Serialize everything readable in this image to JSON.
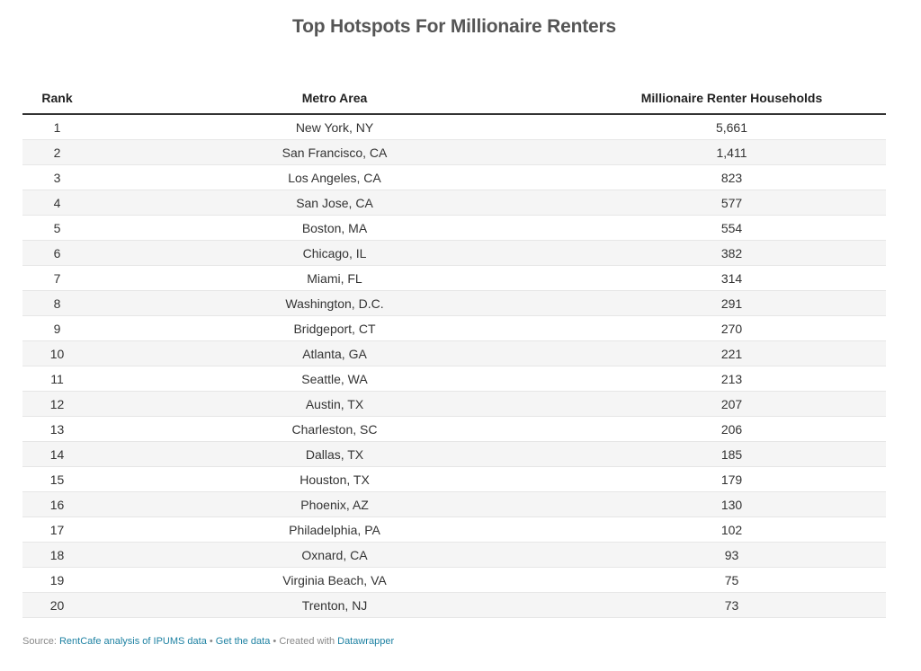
{
  "title": "Top Hotspots For Millionaire Renters",
  "chart_data": {
    "type": "table",
    "title": "Top Hotspots For Millionaire Renters",
    "columns": [
      "Rank",
      "Metro Area",
      "Millionaire Renter Households"
    ],
    "rows": [
      [
        "1",
        "New York, NY",
        "5,661"
      ],
      [
        "2",
        "San Francisco, CA",
        "1,411"
      ],
      [
        "3",
        "Los Angeles, CA",
        "823"
      ],
      [
        "4",
        "San Jose, CA",
        "577"
      ],
      [
        "5",
        "Boston, MA",
        "554"
      ],
      [
        "6",
        "Chicago, IL",
        "382"
      ],
      [
        "7",
        "Miami, FL",
        "314"
      ],
      [
        "8",
        "Washington, D.C.",
        "291"
      ],
      [
        "9",
        "Bridgeport, CT",
        "270"
      ],
      [
        "10",
        "Atlanta, GA",
        "221"
      ],
      [
        "11",
        "Seattle, WA",
        "213"
      ],
      [
        "12",
        "Austin, TX",
        "207"
      ],
      [
        "13",
        "Charleston, SC",
        "206"
      ],
      [
        "14",
        "Dallas, TX",
        "185"
      ],
      [
        "15",
        "Houston, TX",
        "179"
      ],
      [
        "16",
        "Phoenix, AZ",
        "130"
      ],
      [
        "17",
        "Philadelphia, PA",
        "102"
      ],
      [
        "18",
        "Oxnard, CA",
        "93"
      ],
      [
        "19",
        "Virginia Beach, VA",
        "75"
      ],
      [
        "20",
        "Trenton, NJ",
        "73"
      ]
    ]
  },
  "footer": {
    "source_label": "Source: ",
    "source_link": "RentCafe analysis of IPUMS data",
    "sep1": " • ",
    "get_data": "Get the data",
    "sep2": " • ",
    "created_with": "Created with ",
    "tool_link": "Datawrapper"
  },
  "colors": {
    "title": "#555555",
    "link": "#1d81a2",
    "stripe": "#f5f5f5",
    "header_rule": "#333333"
  }
}
